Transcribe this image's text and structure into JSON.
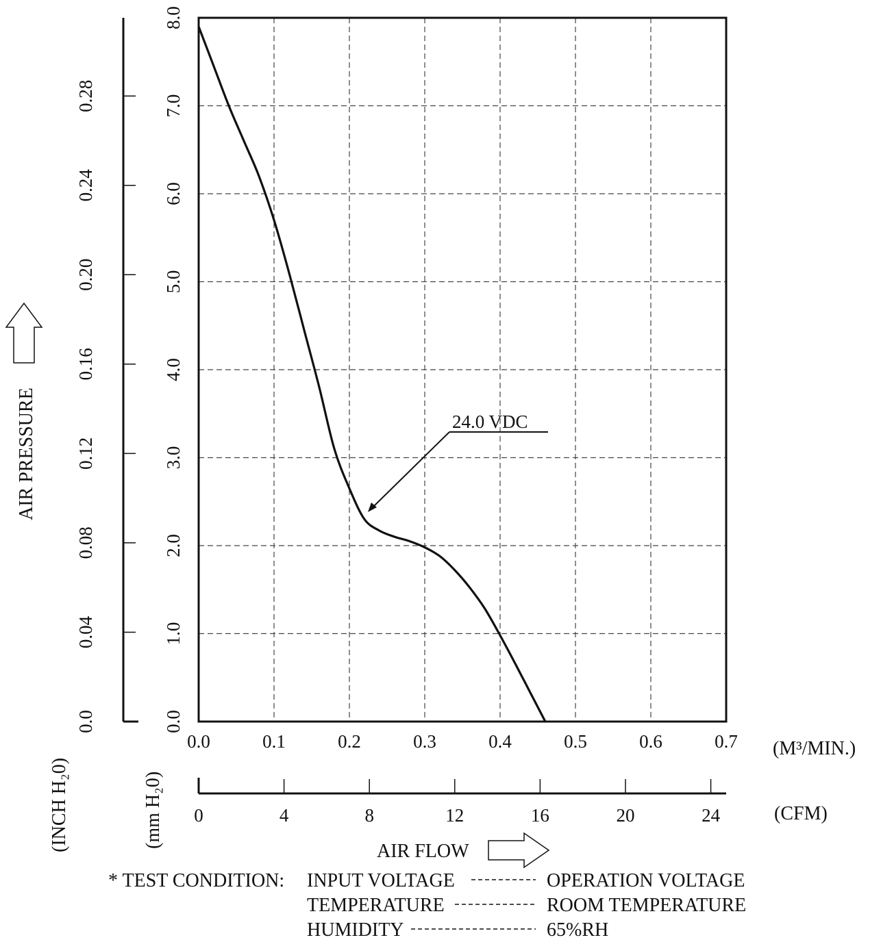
{
  "chart_data": {
    "type": "line",
    "x_axis": {
      "unit_label": "(M³/MIN.)",
      "ticks": [
        "0.0",
        "0.1",
        "0.2",
        "0.3",
        "0.4",
        "0.5",
        "0.6",
        "0.7"
      ],
      "range": [
        0,
        0.7
      ]
    },
    "x2_axis": {
      "unit_label": "(CFM)",
      "ticks": [
        "0",
        "4",
        "8",
        "12",
        "16",
        "20",
        "24"
      ],
      "range": [
        0,
        24.72
      ]
    },
    "xlabel": "AIR FLOW",
    "y_axis": {
      "unit_label": "(mm H₂0)",
      "ticks": [
        "0.0",
        "1.0",
        "2.0",
        "3.0",
        "4.0",
        "5.0",
        "6.0",
        "7.0",
        "8.0"
      ],
      "range": [
        0,
        8.0
      ]
    },
    "y2_axis": {
      "unit_label": "(INCH H₂0)",
      "ticks": [
        "0.0",
        "0.04",
        "0.08",
        "0.12",
        "0.16",
        "0.20",
        "0.24",
        "0.28"
      ],
      "range": [
        0,
        0.315
      ]
    },
    "ylabel": "AIR PRESSURE",
    "grid": true,
    "series": [
      {
        "name": "24.0 VDC",
        "x": [
          0.0,
          0.02,
          0.04,
          0.06,
          0.08,
          0.1,
          0.12,
          0.14,
          0.16,
          0.18,
          0.2,
          0.22,
          0.24,
          0.26,
          0.28,
          0.3,
          0.32,
          0.34,
          0.36,
          0.38,
          0.4,
          0.42,
          0.44,
          0.46
        ],
        "values": [
          7.9,
          7.45,
          7.0,
          6.6,
          6.2,
          5.7,
          5.1,
          4.45,
          3.8,
          3.1,
          2.65,
          2.3,
          2.17,
          2.1,
          2.05,
          1.98,
          1.88,
          1.72,
          1.52,
          1.28,
          0.98,
          0.66,
          0.33,
          0.0
        ]
      }
    ],
    "annotation": "24.0 VDC",
    "test_condition": {
      "header": "* TEST CONDITION:",
      "rows": [
        {
          "label": "INPUT VOLTAGE",
          "value": "OPERATION VOLTAGE"
        },
        {
          "label": "TEMPERATURE",
          "value": "ROOM TEMPERATURE"
        },
        {
          "label": "HUMIDITY",
          "value": "65%RH"
        }
      ]
    }
  }
}
